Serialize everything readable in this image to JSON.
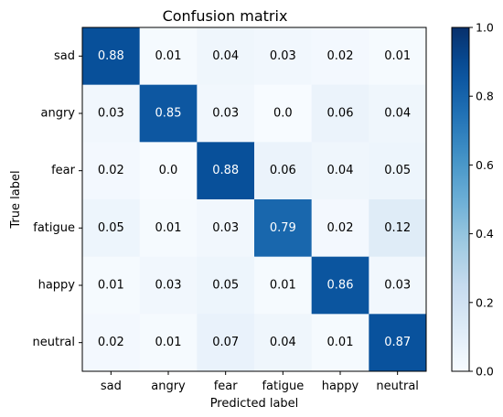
{
  "chart_data": {
    "type": "heatmap",
    "title": "Confusion matrix",
    "xlabel": "Predicted label",
    "ylabel": "True label",
    "x_categories": [
      "sad",
      "angry",
      "fear",
      "fatigue",
      "happy",
      "neutral"
    ],
    "y_categories": [
      "sad",
      "angry",
      "fear",
      "fatigue",
      "happy",
      "neutral"
    ],
    "values": [
      [
        0.88,
        0.01,
        0.04,
        0.03,
        0.02,
        0.01
      ],
      [
        0.03,
        0.85,
        0.03,
        0.0,
        0.06,
        0.04
      ],
      [
        0.02,
        0.0,
        0.88,
        0.06,
        0.04,
        0.05
      ],
      [
        0.05,
        0.01,
        0.03,
        0.79,
        0.02,
        0.12
      ],
      [
        0.01,
        0.03,
        0.05,
        0.01,
        0.86,
        0.03
      ],
      [
        0.02,
        0.01,
        0.07,
        0.04,
        0.01,
        0.87
      ]
    ],
    "value_labels": [
      [
        "0.88",
        "0.01",
        "0.04",
        "0.03",
        "0.02",
        "0.01"
      ],
      [
        "0.03",
        "0.85",
        "0.03",
        "0.0",
        "0.06",
        "0.04"
      ],
      [
        "0.02",
        "0.0",
        "0.88",
        "0.06",
        "0.04",
        "0.05"
      ],
      [
        "0.05",
        "0.01",
        "0.03",
        "0.79",
        "0.02",
        "0.12"
      ],
      [
        "0.01",
        "0.03",
        "0.05",
        "0.01",
        "0.86",
        "0.03"
      ],
      [
        "0.02",
        "0.01",
        "0.07",
        "0.04",
        "0.01",
        "0.87"
      ]
    ],
    "colormap": "Blues",
    "colorbar": {
      "range": [
        0.0,
        1.0
      ],
      "ticks": [
        0.0,
        0.2,
        0.4,
        0.6,
        0.8,
        1.0
      ],
      "tick_labels": [
        "0.0",
        "0.2",
        "0.4",
        "0.6",
        "0.8",
        "1.0"
      ]
    },
    "grid": false
  }
}
